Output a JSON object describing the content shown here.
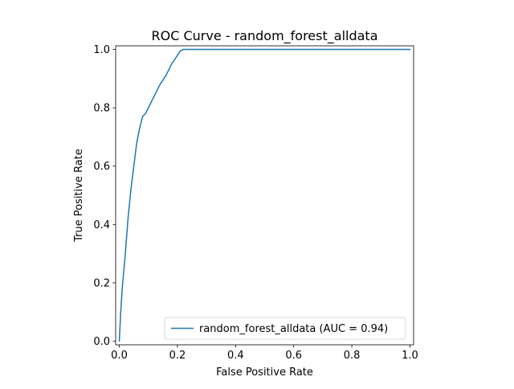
{
  "chart_data": {
    "type": "line",
    "title": "ROC Curve - random_forest_alldata",
    "xlabel": "False Positive Rate",
    "ylabel": "True Positive Rate",
    "xlim": [
      0.0,
      1.0
    ],
    "ylim": [
      0.0,
      1.0
    ],
    "xticks": [
      "0.0",
      "0.2",
      "0.4",
      "0.6",
      "0.8",
      "1.0"
    ],
    "yticks": [
      "0.0",
      "0.2",
      "0.4",
      "0.6",
      "0.8",
      "1.0"
    ],
    "grid": false,
    "legend_position": "lower right",
    "series": [
      {
        "name": "random_forest_alldata (AUC = 0.94)",
        "color": "#1f77b4",
        "x": [
          0.0,
          0.005,
          0.01,
          0.02,
          0.03,
          0.04,
          0.05,
          0.06,
          0.07,
          0.08,
          0.09,
          0.1,
          0.11,
          0.12,
          0.13,
          0.14,
          0.15,
          0.16,
          0.17,
          0.18,
          0.19,
          0.2,
          0.21,
          0.22,
          0.25,
          0.3,
          0.4,
          0.5,
          0.6,
          0.7,
          0.8,
          0.9,
          1.0
        ],
        "y": [
          0.0,
          0.1,
          0.18,
          0.29,
          0.42,
          0.52,
          0.6,
          0.68,
          0.73,
          0.77,
          0.78,
          0.8,
          0.82,
          0.84,
          0.86,
          0.88,
          0.895,
          0.91,
          0.93,
          0.95,
          0.965,
          0.98,
          0.995,
          1.0,
          1.0,
          1.0,
          1.0,
          1.0,
          1.0,
          1.0,
          1.0,
          1.0,
          1.0
        ]
      }
    ]
  }
}
